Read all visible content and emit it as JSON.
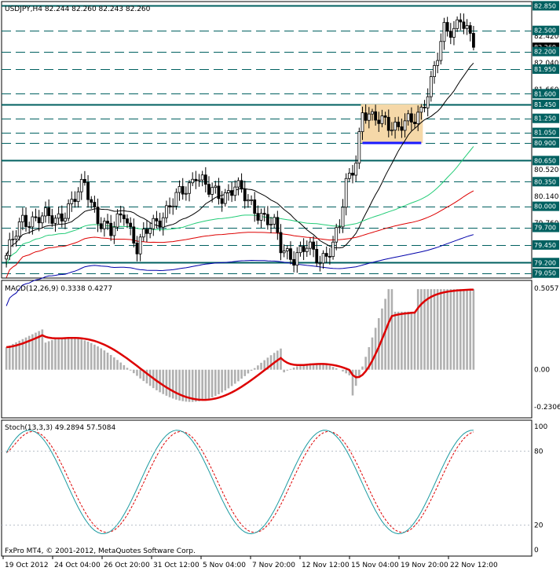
{
  "chart_data": {
    "type": "candlestick",
    "symbol_header": "USDJPY,H4  82.244 82.260 82.243 82.260",
    "macd_header": "MACD(12,26,9) 0.3338 0.4277",
    "stoch_header": "Stoch(13,3,3) 49.2894 57.5084",
    "copyright": "FxPro MT4, © 2001-2012, MetaQuotes Software Corp.",
    "price_range": [
      78.98,
      82.91
    ],
    "macd_range": [
      -0.2306,
      0.5057
    ],
    "stoch_range": [
      0,
      100
    ],
    "price_ticks": [
      "82.850",
      "82.500",
      "82.260",
      "82.200",
      "81.950",
      "81.600",
      "81.450",
      "81.250",
      "81.050",
      "80.900",
      "80.650",
      "80.350",
      "80.000",
      "79.700",
      "79.450",
      "79.200",
      "79.050"
    ],
    "price_minor_ticks": [
      "82.420",
      "82.040",
      "81.660",
      "80.520",
      "80.140",
      "79.760"
    ],
    "current_price": "82.260",
    "macd_ticks": [
      "0.5057",
      "0.00",
      "-0.2306"
    ],
    "stoch_ticks": [
      "100",
      "80",
      "20",
      "0"
    ],
    "time_labels": [
      "19 Oct 2012",
      "24 Oct 04:00",
      "26 Oct 20:00",
      "31 Oct 12:00",
      "5 Nov 04:00",
      "7 Nov 20:00",
      "12 Nov 12:00",
      "15 Nov 04:00",
      "19 Nov 20:00",
      "22 Nov 12:00"
    ],
    "levels": [
      {
        "price": 82.85,
        "style": "solid"
      },
      {
        "price": 82.5,
        "style": "dash"
      },
      {
        "price": 82.2,
        "style": "dash"
      },
      {
        "price": 81.95,
        "style": "dash"
      },
      {
        "price": 81.6,
        "style": "dash"
      },
      {
        "price": 81.45,
        "style": "solid"
      },
      {
        "price": 81.25,
        "style": "dash"
      },
      {
        "price": 81.05,
        "style": "dash"
      },
      {
        "price": 80.9,
        "style": "dash"
      },
      {
        "price": 80.65,
        "style": "solid"
      },
      {
        "price": 80.35,
        "style": "dash"
      },
      {
        "price": 80.0,
        "style": "dash"
      },
      {
        "price": 79.7,
        "style": "dash"
      },
      {
        "price": 79.45,
        "style": "dash"
      },
      {
        "price": 79.2,
        "style": "solid"
      },
      {
        "price": 79.05,
        "style": "dash"
      }
    ],
    "consolidation_box": {
      "start_bar": 109,
      "end_bar": 127,
      "price_low": 80.9,
      "price_high": 81.45,
      "support_price": 80.9
    },
    "bar_count": 144,
    "ohlc_anchors": [
      [
        0,
        79.3
      ],
      [
        5,
        79.8
      ],
      [
        10,
        79.85
      ],
      [
        15,
        79.8
      ],
      [
        20,
        80.05
      ],
      [
        24,
        80.3
      ],
      [
        28,
        79.85
      ],
      [
        32,
        79.6
      ],
      [
        36,
        79.95
      ],
      [
        40,
        79.4
      ],
      [
        44,
        79.7
      ],
      [
        48,
        79.9
      ],
      [
        52,
        80.1
      ],
      [
        56,
        80.3
      ],
      [
        58,
        80.5
      ],
      [
        62,
        80.2
      ],
      [
        66,
        80.15
      ],
      [
        70,
        80.3
      ],
      [
        74,
        80.05
      ],
      [
        78,
        79.9
      ],
      [
        82,
        79.7
      ],
      [
        84,
        79.4
      ],
      [
        88,
        79.3
      ],
      [
        92,
        79.4
      ],
      [
        96,
        79.25
      ],
      [
        100,
        79.45
      ],
      [
        102,
        79.7
      ],
      [
        104,
        80.3
      ],
      [
        107,
        80.7
      ],
      [
        109,
        81.35
      ],
      [
        112,
        81.2
      ],
      [
        116,
        81.25
      ],
      [
        120,
        81.1
      ],
      [
        124,
        81.2
      ],
      [
        127,
        81.4
      ],
      [
        130,
        81.75
      ],
      [
        132,
        82.1
      ],
      [
        134,
        82.5
      ],
      [
        137,
        82.55
      ],
      [
        139,
        82.7
      ],
      [
        141,
        82.45
      ],
      [
        143,
        82.26
      ]
    ],
    "series": [
      {
        "kind": "ma",
        "color": "#000000",
        "period": 21
      },
      {
        "kind": "ma",
        "color": "#22cc77",
        "period": 55
      },
      {
        "kind": "ma",
        "color": "#dd0000",
        "period": 100
      },
      {
        "kind": "ma",
        "color": "#0000aa",
        "period": 200
      },
      {
        "kind": "macd_hist",
        "color": "#b0b0b0"
      },
      {
        "kind": "macd_signal",
        "color": "#dd0000"
      },
      {
        "kind": "stoch_main",
        "color": "#1a9aa0"
      },
      {
        "kind": "stoch_signal",
        "color": "#dd0000"
      }
    ]
  },
  "colors": {
    "background": "#ffffff",
    "grid": "#9aa0aa",
    "level": "#006060",
    "candle": "#000000",
    "box_fill": "#f5d8a8",
    "support": "#1a1aff",
    "price_tag": "#000000"
  }
}
